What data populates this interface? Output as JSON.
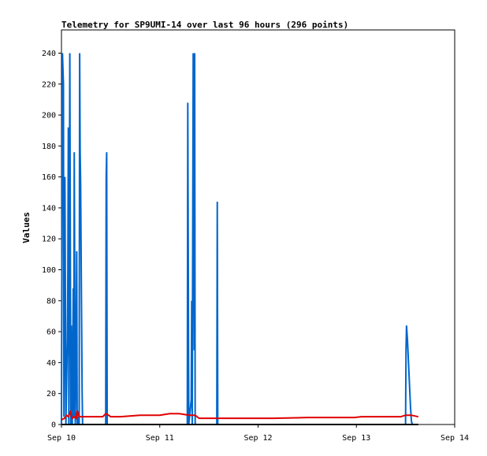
{
  "chart_data": {
    "type": "line",
    "title": "Telemetry for SP9UMI-14 over last 96 hours (296 points)",
    "xlabel": "",
    "ylabel": "Values",
    "x_ticks": [
      "Sep 10",
      "Sep 11",
      "Sep 12",
      "Sep 13",
      "Sep 14"
    ],
    "xlim": [
      0,
      4
    ],
    "y_ticks": [
      0,
      20,
      40,
      60,
      80,
      100,
      120,
      140,
      160,
      180,
      200,
      220,
      240
    ],
    "ylim": [
      0,
      255
    ],
    "grid": false,
    "colors": {
      "series1": "#0066cc",
      "series2": "#e00000",
      "series3": "#000000"
    },
    "series": [
      {
        "values": [
          [
            0.0,
            0
          ],
          [
            0.01,
            240
          ],
          [
            0.02,
            220
          ],
          [
            0.025,
            5
          ],
          [
            0.035,
            160
          ],
          [
            0.045,
            0
          ],
          [
            0.06,
            55
          ],
          [
            0.065,
            97
          ],
          [
            0.07,
            192
          ],
          [
            0.075,
            0
          ],
          [
            0.085,
            240
          ],
          [
            0.095,
            0
          ],
          [
            0.1,
            64
          ],
          [
            0.105,
            30
          ],
          [
            0.11,
            0
          ],
          [
            0.12,
            88
          ],
          [
            0.125,
            5
          ],
          [
            0.13,
            176
          ],
          [
            0.14,
            0
          ],
          [
            0.15,
            56
          ],
          [
            0.155,
            112
          ],
          [
            0.16,
            0
          ],
          [
            0.17,
            5
          ],
          [
            0.18,
            0
          ],
          [
            0.185,
            240
          ],
          [
            0.19,
            176
          ],
          [
            0.195,
            154
          ],
          [
            0.2,
            110
          ],
          [
            0.205,
            66
          ],
          [
            0.21,
            22
          ],
          [
            0.215,
            0
          ],
          [
            0.45,
            0
          ],
          [
            0.455,
            160
          ],
          [
            0.46,
            176
          ],
          [
            0.465,
            0
          ],
          [
            1.28,
            0
          ],
          [
            1.285,
            208
          ],
          [
            1.29,
            104
          ],
          [
            1.295,
            0
          ],
          [
            1.32,
            16
          ],
          [
            1.325,
            80
          ],
          [
            1.33,
            0
          ],
          [
            1.34,
            240
          ],
          [
            1.345,
            208
          ],
          [
            1.35,
            48
          ],
          [
            1.355,
            240
          ],
          [
            1.36,
            0
          ],
          [
            1.58,
            0
          ],
          [
            1.585,
            144
          ],
          [
            1.59,
            0
          ],
          [
            3.5,
            0
          ],
          [
            3.505,
            48
          ],
          [
            3.51,
            64
          ],
          [
            3.52,
            54
          ],
          [
            3.53,
            40
          ],
          [
            3.54,
            26
          ],
          [
            3.55,
            12
          ],
          [
            3.56,
            2
          ],
          [
            3.57,
            0
          ]
        ]
      },
      {
        "values": [
          [
            0.0,
            3
          ],
          [
            0.03,
            4
          ],
          [
            0.05,
            6
          ],
          [
            0.07,
            5
          ],
          [
            0.09,
            8
          ],
          [
            0.11,
            4
          ],
          [
            0.13,
            5
          ],
          [
            0.15,
            4
          ],
          [
            0.16,
            9
          ],
          [
            0.18,
            5
          ],
          [
            0.3,
            5
          ],
          [
            0.42,
            5
          ],
          [
            0.45,
            7
          ],
          [
            0.48,
            6
          ],
          [
            0.5,
            5
          ],
          [
            0.6,
            5
          ],
          [
            0.8,
            6
          ],
          [
            1.0,
            6
          ],
          [
            1.1,
            7
          ],
          [
            1.2,
            7
          ],
          [
            1.3,
            6
          ],
          [
            1.36,
            6
          ],
          [
            1.4,
            4
          ],
          [
            1.6,
            4
          ],
          [
            2.0,
            4
          ],
          [
            2.15,
            4
          ],
          [
            2.5,
            4.5
          ],
          [
            2.98,
            4.5
          ],
          [
            3.05,
            5
          ],
          [
            3.45,
            5
          ],
          [
            3.5,
            6
          ],
          [
            3.56,
            6
          ],
          [
            3.63,
            5
          ]
        ]
      },
      {
        "values": [
          [
            0.0,
            0
          ],
          [
            3.63,
            0
          ]
        ]
      }
    ]
  }
}
